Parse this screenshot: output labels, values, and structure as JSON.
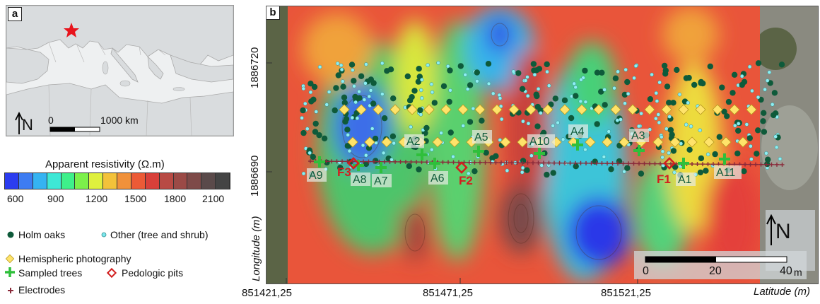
{
  "panel_a": {
    "label": "a",
    "scale_zero": "0",
    "scale_label": "1000 km",
    "north": "N"
  },
  "legend": {
    "title": "Apparent resistivity (Ω.m)",
    "colors": [
      "#2b3cf0",
      "#3d7cf2",
      "#35b3f2",
      "#3ee8d6",
      "#3ef08a",
      "#7cf04a",
      "#dff03e",
      "#f3c23a",
      "#f0913a",
      "#ec5a36",
      "#d8403a",
      "#b84a44",
      "#9b4a46",
      "#7e4a48",
      "#5a4a4a",
      "#444444"
    ],
    "ticks": [
      "600",
      "900",
      "1200",
      "1500",
      "1800",
      "2100"
    ],
    "items": [
      {
        "label": "Holm oaks",
        "symbol": "dark-dot",
        "color": "#0e5a3a"
      },
      {
        "label": "Other (tree and shrub)",
        "symbol": "light-dot",
        "color": "#7ee8ee"
      },
      {
        "label": "Hemispheric photography",
        "symbol": "diamond",
        "color": "#ffe36a"
      },
      {
        "label": "Sampled trees",
        "symbol": "plus",
        "color": "#2fbf3b"
      },
      {
        "label": "Pedologic pits",
        "symbol": "hollow-diamond",
        "color": "#d21e1e"
      },
      {
        "label": "Electrodes",
        "symbol": "small-plus",
        "color": "#8a2a3a"
      }
    ]
  },
  "panel_b": {
    "label": "b",
    "y_axis_label": "Longitude (m)",
    "x_axis_label": "Latitude (m)",
    "y_ticks": [
      "1886720",
      "1886690"
    ],
    "x_ticks": [
      "851421,25",
      "851471,25",
      "851521,25"
    ],
    "scale": {
      "zero": "0",
      "mid": "20",
      "end": "40",
      "unit": "m"
    },
    "north": "N",
    "sampled_trees": [
      "A1",
      "A2",
      "A3",
      "A4",
      "A5",
      "A6",
      "A7",
      "A8",
      "A9",
      "A10",
      "A11"
    ],
    "pits": [
      "F1",
      "F2",
      "F3"
    ]
  }
}
